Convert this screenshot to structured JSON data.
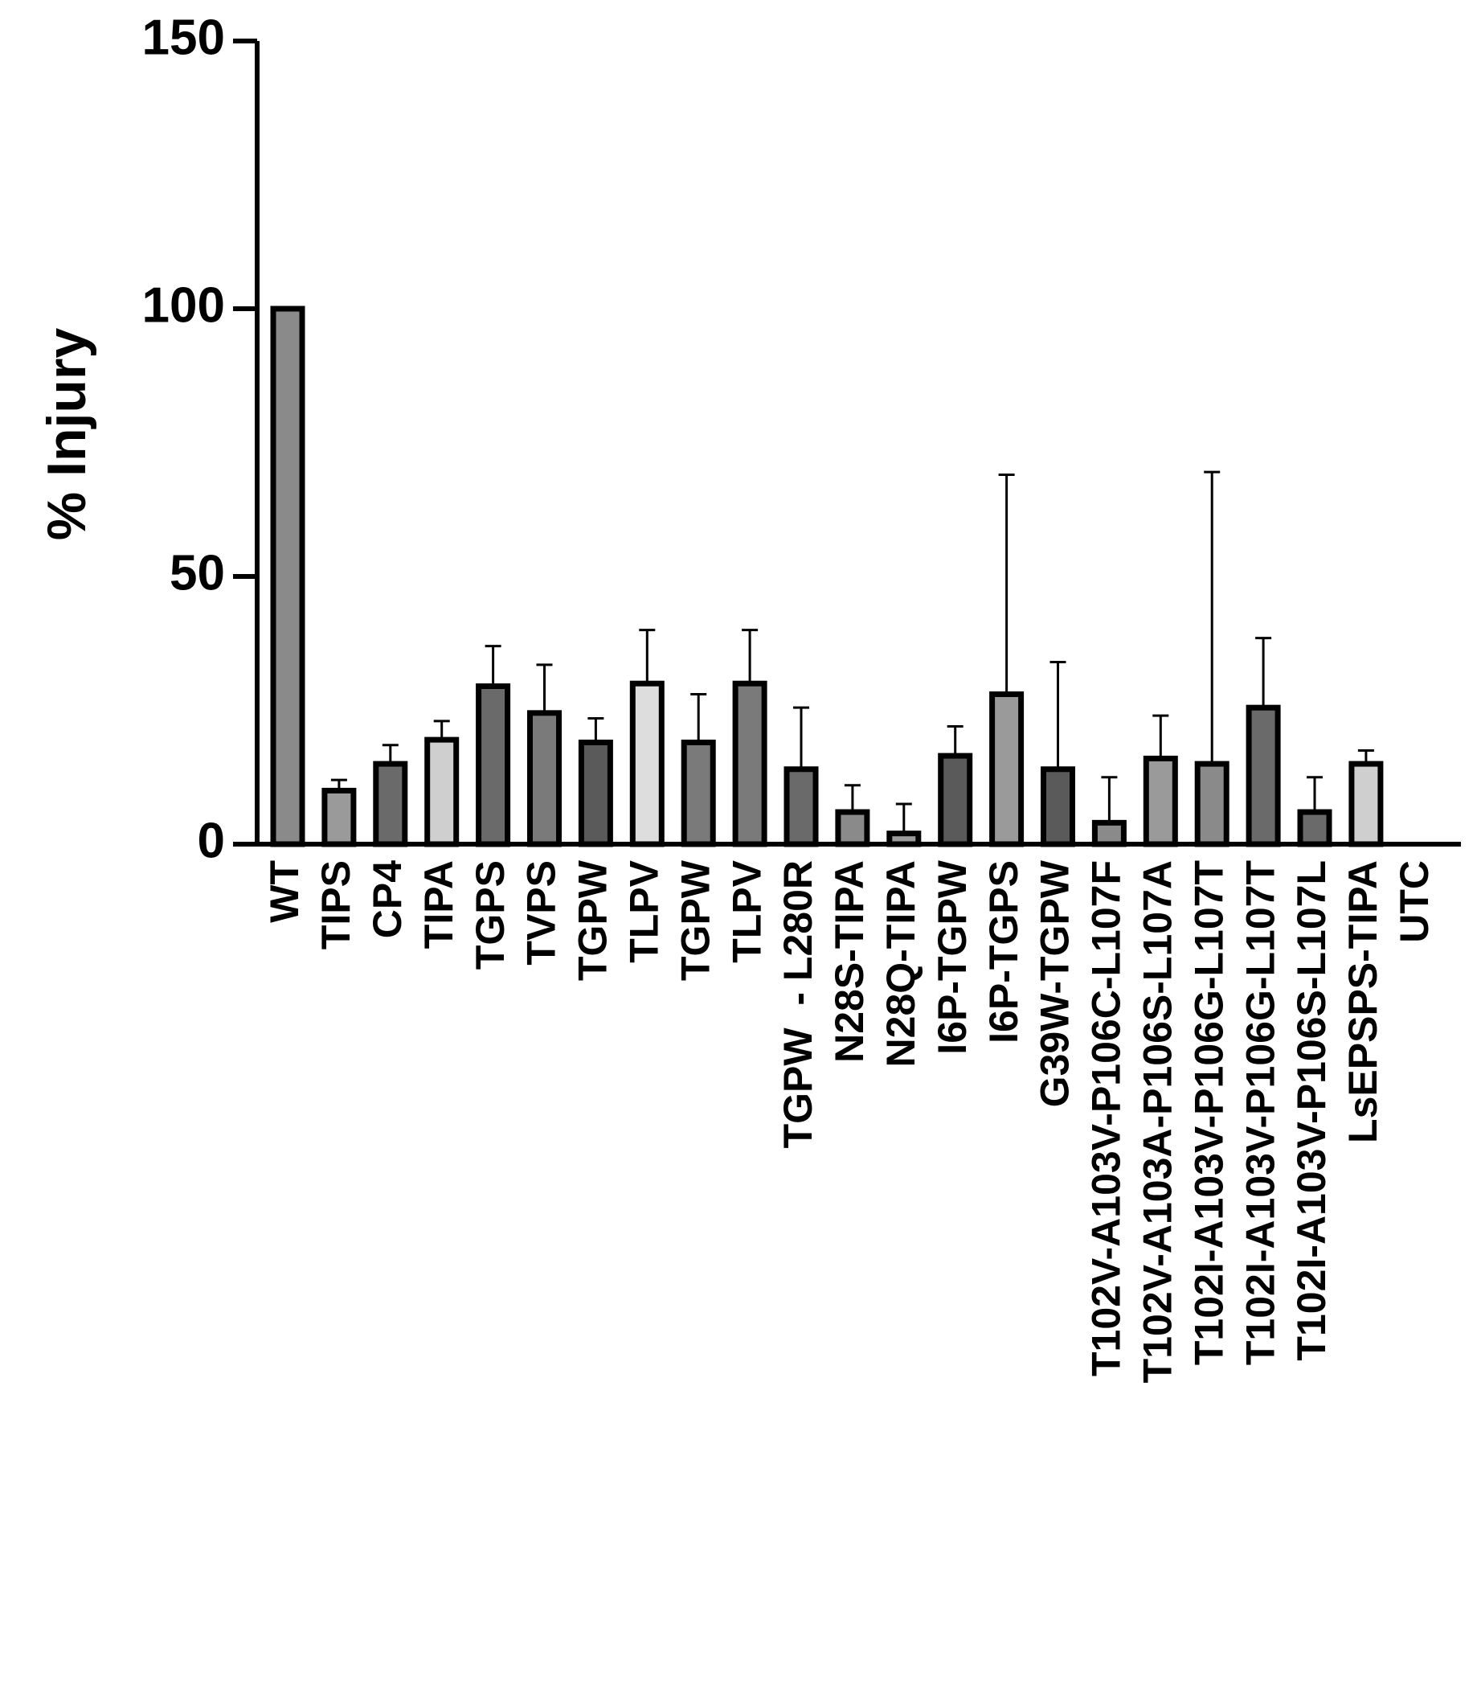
{
  "chart_data": {
    "type": "bar",
    "ylabel": "% Injury",
    "categories": [
      "WT",
      "TIPS",
      "CP4",
      "TIPA",
      "TGPS",
      "TVPS",
      "TGPW",
      "TLPV",
      "TGPW",
      "TLPV",
      "TGPW  - L280R",
      "N28S-TIPA",
      "N28Q-TIPA",
      "I6P-TGPW",
      "I6P-TGPS",
      "G39W-TGPW",
      "T102V-A103V-P106C-L107F",
      "T102V-A103A-P106S-L107A",
      "T102I-A103V-P106G-L107T",
      "T102I-A103V-P106G-L107T",
      "T102I-A103V-P106S-L107L",
      "LsEPSPS-TIPA",
      "UTC"
    ],
    "values": [
      100,
      10,
      15,
      19.5,
      29.5,
      24.5,
      19,
      30,
      19,
      30,
      14,
      6,
      2,
      16.5,
      28,
      14,
      4,
      16,
      15,
      25.5,
      6,
      15,
      0
    ],
    "errors": [
      0,
      2,
      3.5,
      3.5,
      7.5,
      9,
      4.5,
      10,
      9,
      10,
      11.5,
      5,
      5.5,
      5.5,
      41,
      20,
      8.5,
      8,
      54.5,
      13,
      6.5,
      2.5,
      0
    ],
    "colors": [
      "#8a8a8a",
      "#9a9a9a",
      "#6a6a6a",
      "#cfcfcf",
      "#6a6a6a",
      "#7a7a7a",
      "#5a5a5a",
      "#dddddd",
      "#7a7a7a",
      "#7a7a7a",
      "#6a6a6a",
      "#8a8a8a",
      "#9a9a9a",
      "#5a5a5a",
      "#9a9a9a",
      "#5a5a5a",
      "#8a8a8a",
      "#9a9a9a",
      "#8a8a8a",
      "#6a6a6a",
      "#6a6a6a",
      "#cfcfcf",
      "#6a6a6a"
    ],
    "ylim": [
      0,
      150
    ],
    "yticks": [
      0,
      50,
      100,
      150
    ]
  }
}
